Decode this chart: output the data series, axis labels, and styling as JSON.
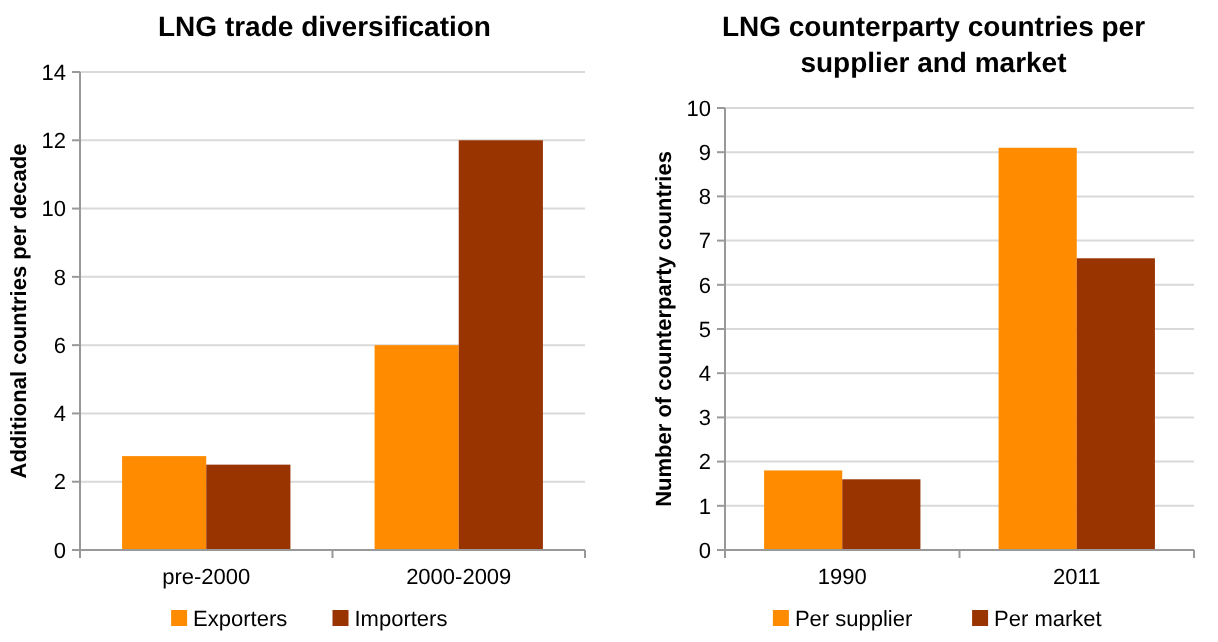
{
  "chart_data": [
    {
      "type": "bar",
      "title": "LNG trade diversification",
      "ylabel": "Additional countries per decade",
      "categories": [
        "pre-2000",
        "2000-2009"
      ],
      "series": [
        {
          "name": "Exporters",
          "color": "#ff8c00",
          "values": [
            2.75,
            6
          ]
        },
        {
          "name": "Importers",
          "color": "#993300",
          "values": [
            2.5,
            12
          ]
        }
      ],
      "ylim": [
        0,
        14
      ],
      "yticks": [
        0,
        2,
        4,
        6,
        8,
        10,
        12,
        14
      ],
      "grid": "y",
      "legend": "bottom"
    },
    {
      "type": "bar",
      "title": "LNG counterparty countries per supplier and market",
      "ylabel": "Number of counterparty countries",
      "categories": [
        "1990",
        "2011"
      ],
      "series": [
        {
          "name": "Per supplier",
          "color": "#ff8c00",
          "values": [
            1.8,
            9.1
          ]
        },
        {
          "name": "Per market",
          "color": "#993300",
          "values": [
            1.6,
            6.6
          ]
        }
      ],
      "ylim": [
        0,
        10
      ],
      "yticks": [
        0,
        1,
        2,
        3,
        4,
        5,
        6,
        7,
        8,
        9,
        10
      ],
      "grid": "y",
      "legend": "bottom"
    }
  ]
}
